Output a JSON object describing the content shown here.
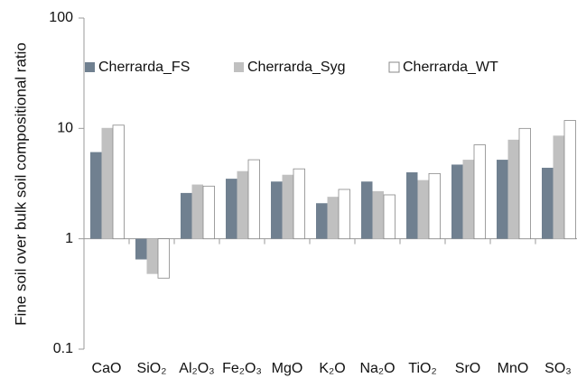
{
  "chart_data": {
    "type": "bar",
    "y_label": "Fine soil over bulk soil compositional ratio",
    "categories": [
      "CaO",
      "SiO₂",
      "Al₂O₃",
      "Fe₂O₃",
      "MgO",
      "K₂O",
      "Na₂O",
      "TiO₂",
      "SrO",
      "MnO",
      "SO₃"
    ],
    "series": [
      {
        "name": "Cherrarda_FS",
        "color": "#708090",
        "values": [
          6.1,
          0.65,
          2.6,
          3.5,
          3.3,
          2.1,
          3.3,
          4.0,
          4.7,
          5.2,
          4.4
        ]
      },
      {
        "name": "Cherrarda_Syg",
        "color": "#c0c0c0",
        "values": [
          10.1,
          0.48,
          3.1,
          4.1,
          3.8,
          2.4,
          2.7,
          3.4,
          5.2,
          7.9,
          8.6
        ]
      },
      {
        "name": "Cherrarda_WT",
        "color": "#ffffff",
        "values": [
          10.7,
          0.44,
          3.0,
          5.2,
          4.3,
          2.8,
          2.5,
          3.9,
          7.1,
          10,
          11.8
        ]
      }
    ],
    "ylim": [
      0.1,
      100
    ],
    "yticks": [
      0.1,
      1,
      10,
      100
    ],
    "log_y": true,
    "legend": "top"
  }
}
